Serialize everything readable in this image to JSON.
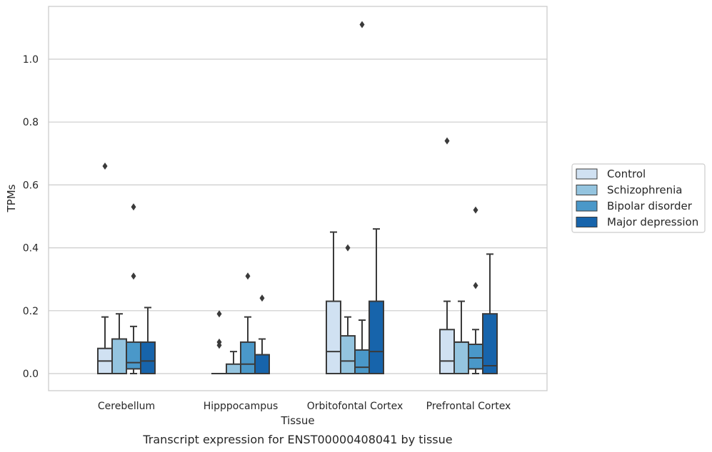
{
  "caption": "Transcript expression for ENST00000408041 by tissue",
  "colors": {
    "Control": "#d0e1f2",
    "Schizophrenia": "#94c4df",
    "Bipolar disorder": "#4a98c9",
    "Major depression": "#1764ab",
    "edge": "#3a3a3a",
    "grid": "#cccccc"
  },
  "chart_data": {
    "type": "box",
    "title": "",
    "xlabel": "Tissue",
    "ylabel": "TPMs",
    "ylim": [
      -0.055,
      1.17
    ],
    "yticks": [
      "0.0",
      "0.2",
      "0.4",
      "0.6",
      "0.8",
      "1.0"
    ],
    "grid": "y",
    "legend_position": "right",
    "categories": [
      "Cerebellum",
      "Hipppocampus",
      "Orbitofontal Cortex",
      "Prefrontal Cortex"
    ],
    "series": [
      {
        "name": "Control",
        "boxes": [
          {
            "q1": 0.0,
            "median": 0.04,
            "q3": 0.08,
            "whisker_low": 0.0,
            "whisker_high": 0.18,
            "outliers": [
              0.66
            ]
          },
          {
            "q1": 0.0,
            "median": 0.0,
            "q3": 0.0,
            "whisker_low": 0.0,
            "whisker_high": 0.0,
            "outliers": [
              0.09,
              0.1,
              0.19
            ]
          },
          {
            "q1": 0.0,
            "median": 0.07,
            "q3": 0.23,
            "whisker_low": 0.0,
            "whisker_high": 0.45,
            "outliers": []
          },
          {
            "q1": 0.0,
            "median": 0.04,
            "q3": 0.14,
            "whisker_low": 0.0,
            "whisker_high": 0.23,
            "outliers": [
              0.74
            ]
          }
        ]
      },
      {
        "name": "Schizophrenia",
        "boxes": [
          {
            "q1": 0.0,
            "median": 0.11,
            "q3": 0.11,
            "whisker_low": 0.0,
            "whisker_high": 0.19,
            "outliers": []
          },
          {
            "q1": 0.0,
            "median": 0.0,
            "q3": 0.03,
            "whisker_low": 0.0,
            "whisker_high": 0.07,
            "outliers": []
          },
          {
            "q1": 0.0,
            "median": 0.04,
            "q3": 0.12,
            "whisker_low": 0.0,
            "whisker_high": 0.18,
            "outliers": [
              0.4
            ]
          },
          {
            "q1": 0.0,
            "median": 0.1,
            "q3": 0.1,
            "whisker_low": 0.0,
            "whisker_high": 0.23,
            "outliers": []
          }
        ]
      },
      {
        "name": "Bipolar disorder",
        "boxes": [
          {
            "q1": 0.015,
            "median": 0.035,
            "q3": 0.1,
            "whisker_low": 0.0,
            "whisker_high": 0.15,
            "outliers": [
              0.31,
              0.53
            ]
          },
          {
            "q1": 0.0,
            "median": 0.03,
            "q3": 0.1,
            "whisker_low": 0.0,
            "whisker_high": 0.18,
            "outliers": [
              0.31
            ]
          },
          {
            "q1": 0.0,
            "median": 0.02,
            "q3": 0.075,
            "whisker_low": 0.0,
            "whisker_high": 0.17,
            "outliers": [
              1.11
            ]
          },
          {
            "q1": 0.015,
            "median": 0.05,
            "q3": 0.093,
            "whisker_low": 0.0,
            "whisker_high": 0.14,
            "outliers": [
              0.28,
              0.52
            ]
          }
        ]
      },
      {
        "name": "Major depression",
        "boxes": [
          {
            "q1": 0.0,
            "median": 0.04,
            "q3": 0.1,
            "whisker_low": 0.0,
            "whisker_high": 0.21,
            "outliers": []
          },
          {
            "q1": 0.0,
            "median": 0.06,
            "q3": 0.06,
            "whisker_low": 0.0,
            "whisker_high": 0.11,
            "outliers": [
              0.24
            ]
          },
          {
            "q1": 0.0,
            "median": 0.07,
            "q3": 0.23,
            "whisker_low": 0.0,
            "whisker_high": 0.46,
            "outliers": []
          },
          {
            "q1": 0.0,
            "median": 0.025,
            "q3": 0.19,
            "whisker_low": 0.0,
            "whisker_high": 0.38,
            "outliers": []
          }
        ]
      }
    ]
  }
}
